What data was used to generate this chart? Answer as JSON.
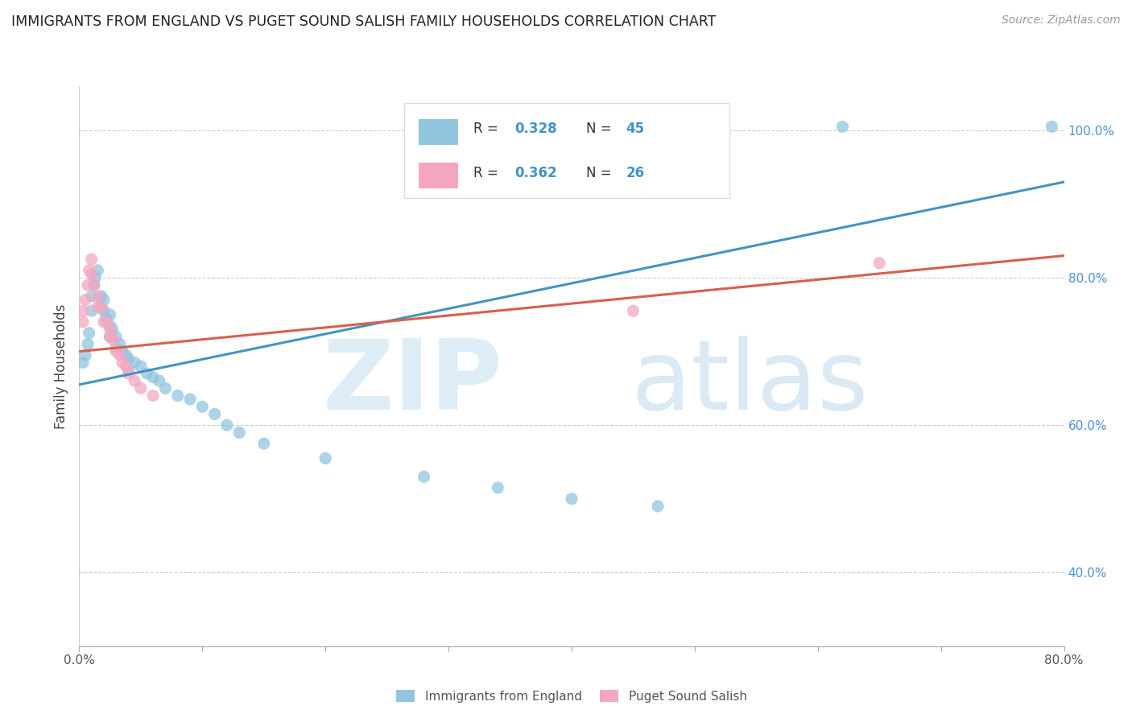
{
  "title": "IMMIGRANTS FROM ENGLAND VS PUGET SOUND SALISH FAMILY HOUSEHOLDS CORRELATION CHART",
  "source": "Source: ZipAtlas.com",
  "ylabel": "Family Households",
  "xlim": [
    0.0,
    0.8
  ],
  "ylim": [
    0.3,
    1.06
  ],
  "right_yticks": [
    0.4,
    0.6,
    0.8,
    1.0
  ],
  "right_yticklabels": [
    "40.0%",
    "60.0%",
    "80.0%",
    "100.0%"
  ],
  "legend_r1": "0.328",
  "legend_n1": "45",
  "legend_r2": "0.362",
  "legend_n2": "26",
  "blue_color": "#92C5DE",
  "pink_color": "#F4A6C0",
  "line_blue": "#4393C3",
  "line_pink": "#D6604D",
  "blue_scatter": [
    [
      0.003,
      0.685
    ],
    [
      0.005,
      0.695
    ],
    [
      0.007,
      0.71
    ],
    [
      0.008,
      0.725
    ],
    [
      0.01,
      0.755
    ],
    [
      0.01,
      0.775
    ],
    [
      0.012,
      0.79
    ],
    [
      0.013,
      0.8
    ],
    [
      0.015,
      0.81
    ],
    [
      0.018,
      0.775
    ],
    [
      0.018,
      0.76
    ],
    [
      0.02,
      0.77
    ],
    [
      0.02,
      0.755
    ],
    [
      0.022,
      0.745
    ],
    [
      0.025,
      0.75
    ],
    [
      0.025,
      0.735
    ],
    [
      0.025,
      0.72
    ],
    [
      0.027,
      0.73
    ],
    [
      0.03,
      0.72
    ],
    [
      0.03,
      0.705
    ],
    [
      0.033,
      0.71
    ],
    [
      0.035,
      0.7
    ],
    [
      0.038,
      0.695
    ],
    [
      0.04,
      0.69
    ],
    [
      0.04,
      0.675
    ],
    [
      0.045,
      0.685
    ],
    [
      0.05,
      0.68
    ],
    [
      0.055,
      0.67
    ],
    [
      0.06,
      0.665
    ],
    [
      0.065,
      0.66
    ],
    [
      0.07,
      0.65
    ],
    [
      0.08,
      0.64
    ],
    [
      0.09,
      0.635
    ],
    [
      0.1,
      0.625
    ],
    [
      0.11,
      0.615
    ],
    [
      0.12,
      0.6
    ],
    [
      0.13,
      0.59
    ],
    [
      0.15,
      0.575
    ],
    [
      0.2,
      0.555
    ],
    [
      0.28,
      0.53
    ],
    [
      0.34,
      0.515
    ],
    [
      0.4,
      0.5
    ],
    [
      0.47,
      0.49
    ],
    [
      0.62,
      1.005
    ],
    [
      0.79,
      1.005
    ]
  ],
  "pink_scatter": [
    [
      0.003,
      0.755
    ],
    [
      0.005,
      0.77
    ],
    [
      0.007,
      0.79
    ],
    [
      0.008,
      0.81
    ],
    [
      0.01,
      0.825
    ],
    [
      0.01,
      0.805
    ],
    [
      0.012,
      0.79
    ],
    [
      0.015,
      0.775
    ],
    [
      0.015,
      0.76
    ],
    [
      0.018,
      0.76
    ],
    [
      0.02,
      0.74
    ],
    [
      0.022,
      0.74
    ],
    [
      0.025,
      0.73
    ],
    [
      0.025,
      0.72
    ],
    [
      0.028,
      0.715
    ],
    [
      0.03,
      0.7
    ],
    [
      0.033,
      0.695
    ],
    [
      0.035,
      0.685
    ],
    [
      0.038,
      0.68
    ],
    [
      0.04,
      0.67
    ],
    [
      0.045,
      0.66
    ],
    [
      0.05,
      0.65
    ],
    [
      0.06,
      0.64
    ],
    [
      0.45,
      0.755
    ],
    [
      0.65,
      0.82
    ],
    [
      0.003,
      0.74
    ]
  ],
  "blue_line_x": [
    0.0,
    0.8
  ],
  "blue_line_y": [
    0.655,
    0.93
  ],
  "pink_line_x": [
    0.0,
    0.8
  ],
  "pink_line_y": [
    0.7,
    0.83
  ]
}
